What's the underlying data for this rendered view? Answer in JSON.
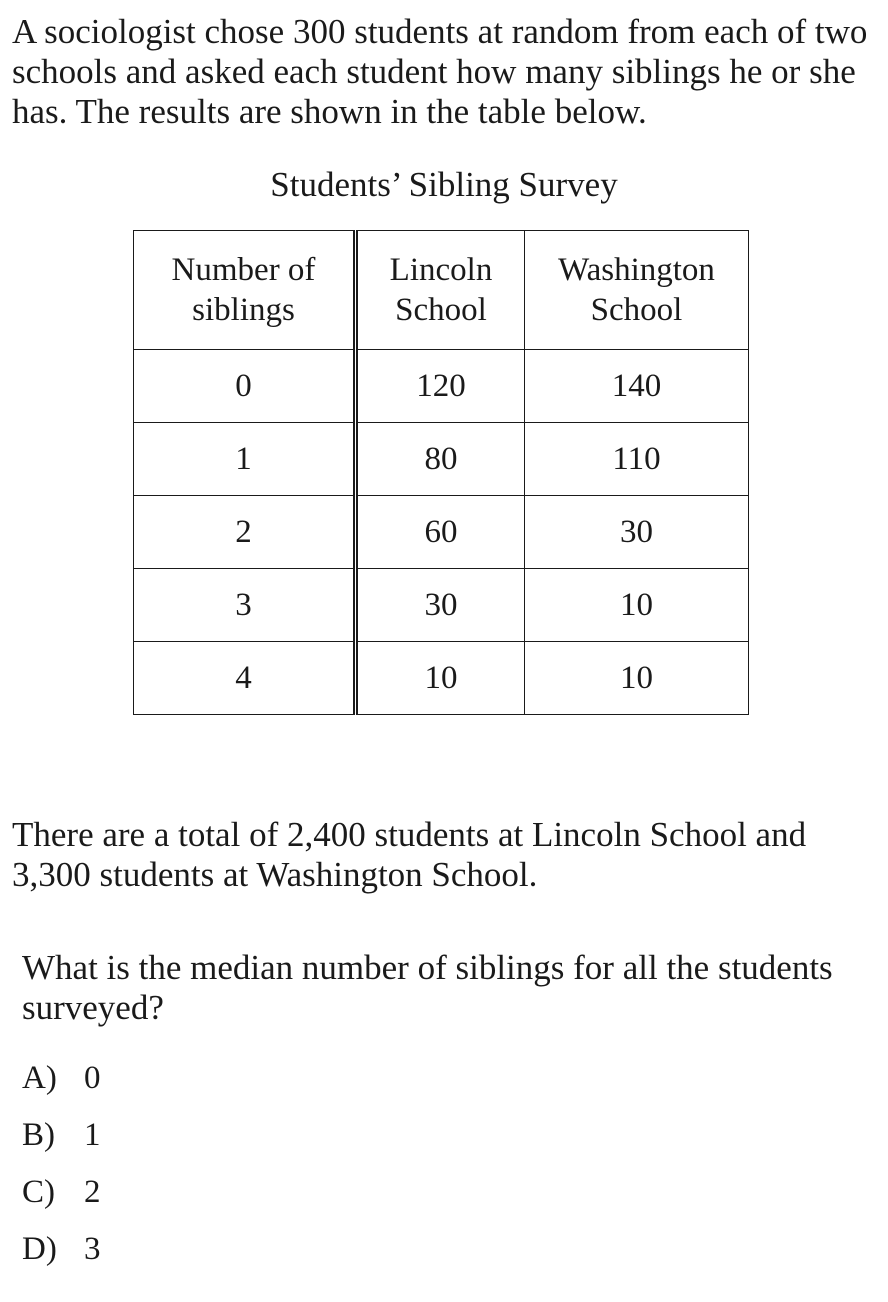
{
  "intro": "A sociologist chose 300 students at random from each of two schools and asked each student how many siblings he or she has. The results are shown in the table below.",
  "table": {
    "title": "Students’ Sibling Survey",
    "headers": [
      "Number of siblings",
      "Lincoln School",
      "Washington School"
    ],
    "rows": [
      [
        "0",
        "120",
        "140"
      ],
      [
        "1",
        "80",
        "110"
      ],
      [
        "2",
        "60",
        "30"
      ],
      [
        "3",
        "30",
        "10"
      ],
      [
        "4",
        "10",
        "10"
      ]
    ]
  },
  "note": "There are a total of 2,400 students at Lincoln School and 3,300 students at Washington School.",
  "question": "What is the median number of siblings for all the students surveyed?",
  "choices": [
    {
      "letter": "A)",
      "text": "0"
    },
    {
      "letter": "B)",
      "text": "1"
    },
    {
      "letter": "C)",
      "text": "2"
    },
    {
      "letter": "D)",
      "text": "3"
    }
  ]
}
